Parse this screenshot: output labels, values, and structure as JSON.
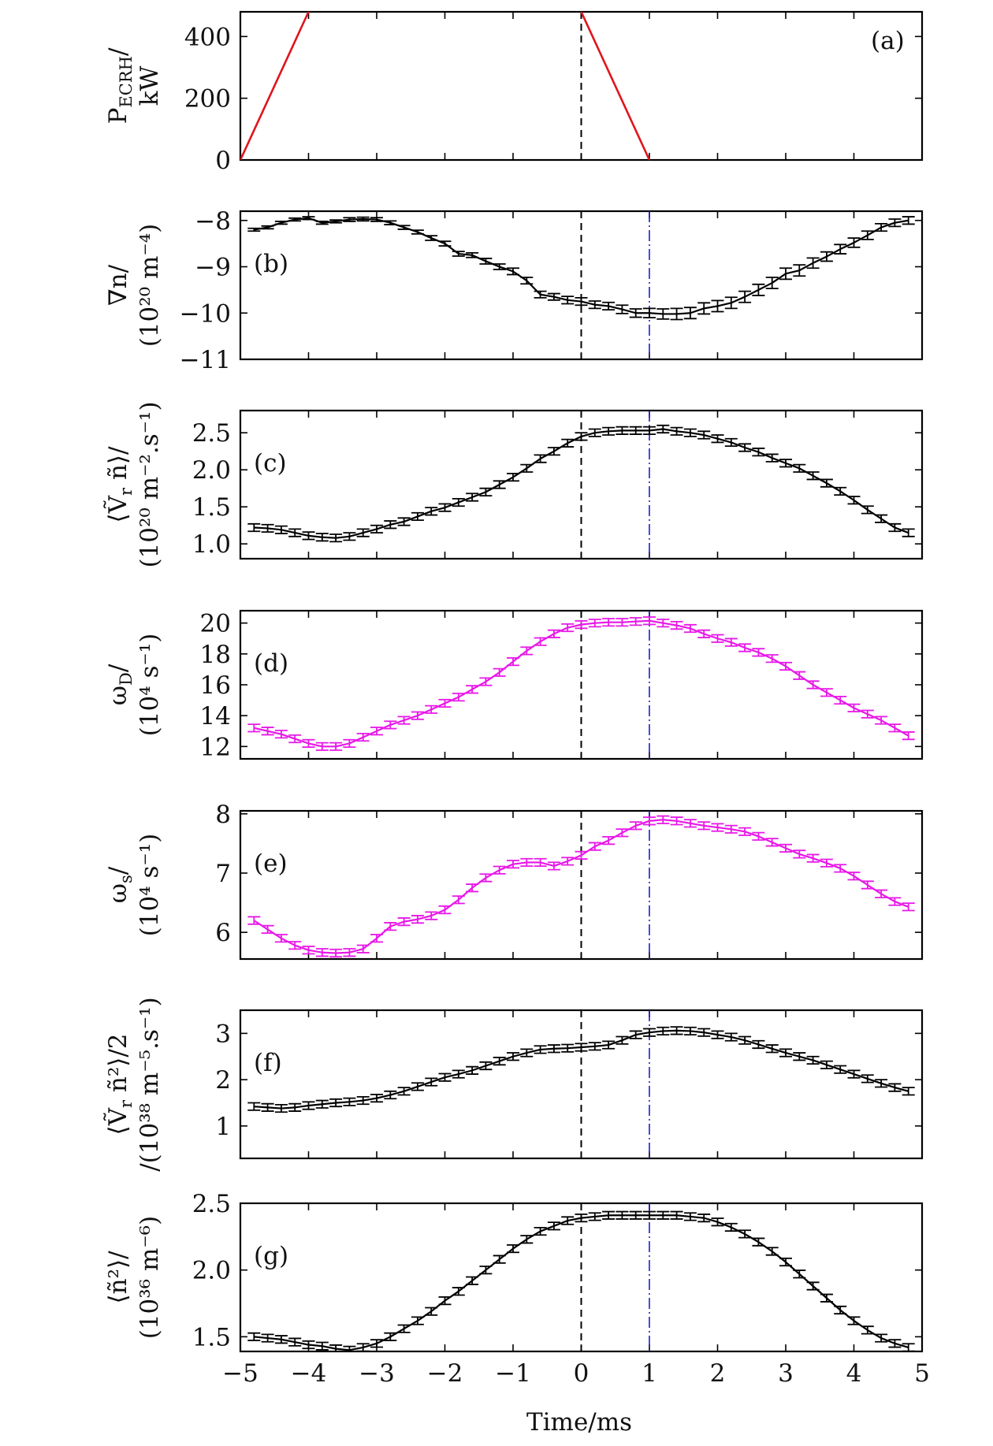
{
  "chart_data": {
    "type": "line",
    "x_range": [
      -5,
      5
    ],
    "xticks": [
      -5,
      -4,
      -3,
      -2,
      -1,
      0,
      1,
      2,
      3,
      4,
      5
    ],
    "xtick_labels": [
      "−5",
      "−4",
      "−3",
      "−2",
      "−1",
      "0",
      "1",
      "2",
      "3",
      "4",
      "5"
    ],
    "xlabel": "Time/ms",
    "vlines": [
      {
        "x": 0,
        "color": "#000000",
        "style": "dashed"
      },
      {
        "x": 1,
        "color": "#1f1fcf",
        "style": "dashdot"
      }
    ],
    "panels": [
      {
        "id": "a",
        "label": "(a)",
        "ylabel_lines": [
          "P_ECRH/",
          "kW"
        ],
        "ylim": [
          0,
          480
        ],
        "yticks": [
          0,
          200,
          400
        ],
        "ytick_labels": [
          "0",
          "200",
          "400"
        ],
        "color": "#e0141c",
        "errorbars": false,
        "series": [
          {
            "x": [
              -5,
              -4
            ],
            "y": [
              0,
              480
            ]
          },
          {
            "x": [
              0,
              1
            ],
            "y": [
              480,
              0
            ]
          }
        ]
      },
      {
        "id": "b",
        "label": "(b)",
        "ylabel_lines": [
          "∇n/",
          "(10²⁰ m⁻⁴)"
        ],
        "ylim": [
          -11,
          -7.8
        ],
        "yticks": [
          -11,
          -10,
          -9,
          -8
        ],
        "ytick_labels": [
          "−11",
          "−10",
          "−9",
          "−8"
        ],
        "color": "#000000",
        "errorbars": true,
        "x": [
          -4.8,
          -4.6,
          -4.4,
          -4.2,
          -4.0,
          -3.8,
          -3.6,
          -3.4,
          -3.2,
          -3.0,
          -2.8,
          -2.6,
          -2.4,
          -2.2,
          -2.0,
          -1.8,
          -1.6,
          -1.4,
          -1.2,
          -1.0,
          -0.8,
          -0.6,
          -0.4,
          -0.2,
          0.0,
          0.2,
          0.4,
          0.6,
          0.8,
          1.0,
          1.2,
          1.4,
          1.6,
          1.8,
          2.0,
          2.2,
          2.4,
          2.6,
          2.8,
          3.0,
          3.2,
          3.4,
          3.6,
          3.8,
          4.0,
          4.2,
          4.4,
          4.6,
          4.8
        ],
        "y": [
          -8.2,
          -8.15,
          -8.05,
          -7.98,
          -7.95,
          -8.05,
          -8.02,
          -7.98,
          -7.97,
          -7.98,
          -8.05,
          -8.15,
          -8.25,
          -8.38,
          -8.5,
          -8.72,
          -8.75,
          -8.88,
          -9.0,
          -9.1,
          -9.3,
          -9.6,
          -9.65,
          -9.72,
          -9.75,
          -9.82,
          -9.85,
          -9.92,
          -10.0,
          -10.0,
          -10.02,
          -10.02,
          -10.0,
          -9.9,
          -9.85,
          -9.78,
          -9.65,
          -9.5,
          -9.35,
          -9.15,
          -9.08,
          -8.92,
          -8.78,
          -8.62,
          -8.48,
          -8.32,
          -8.15,
          -8.05,
          -8.0
        ],
        "err": [
          0.03,
          0.03,
          0.03,
          0.03,
          0.03,
          0.03,
          0.03,
          0.04,
          0.04,
          0.04,
          0.04,
          0.04,
          0.04,
          0.05,
          0.05,
          0.05,
          0.05,
          0.06,
          0.06,
          0.07,
          0.07,
          0.07,
          0.07,
          0.08,
          0.08,
          0.08,
          0.08,
          0.09,
          0.09,
          0.1,
          0.11,
          0.12,
          0.12,
          0.12,
          0.12,
          0.12,
          0.12,
          0.12,
          0.12,
          0.12,
          0.12,
          0.11,
          0.1,
          0.1,
          0.1,
          0.09,
          0.08,
          0.08,
          0.08
        ]
      },
      {
        "id": "c",
        "label": "(c)",
        "ylabel_lines": [
          "⟨Ṽ_r ñ⟩/",
          "(10²⁰ m⁻².s⁻¹)"
        ],
        "ylim": [
          0.8,
          2.8
        ],
        "yticks": [
          1.0,
          1.5,
          2.0,
          2.5
        ],
        "ytick_labels": [
          "1.0",
          "1.5",
          "2.0",
          "2.5"
        ],
        "color": "#000000",
        "errorbars": true,
        "x": [
          -4.8,
          -4.6,
          -4.4,
          -4.2,
          -4.0,
          -3.8,
          -3.6,
          -3.4,
          -3.2,
          -3.0,
          -2.8,
          -2.6,
          -2.4,
          -2.2,
          -2.0,
          -1.8,
          -1.6,
          -1.4,
          -1.2,
          -1.0,
          -0.8,
          -0.6,
          -0.4,
          -0.2,
          0.0,
          0.2,
          0.4,
          0.6,
          0.8,
          1.0,
          1.2,
          1.4,
          1.6,
          1.8,
          2.0,
          2.2,
          2.4,
          2.6,
          2.8,
          3.0,
          3.2,
          3.4,
          3.6,
          3.8,
          4.0,
          4.2,
          4.4,
          4.6,
          4.8
        ],
        "y": [
          1.22,
          1.21,
          1.19,
          1.15,
          1.11,
          1.09,
          1.08,
          1.1,
          1.15,
          1.2,
          1.26,
          1.3,
          1.37,
          1.44,
          1.49,
          1.56,
          1.63,
          1.7,
          1.8,
          1.9,
          2.02,
          2.15,
          2.25,
          2.36,
          2.45,
          2.5,
          2.52,
          2.53,
          2.53,
          2.53,
          2.55,
          2.52,
          2.5,
          2.47,
          2.42,
          2.37,
          2.3,
          2.24,
          2.16,
          2.09,
          2.02,
          1.92,
          1.82,
          1.71,
          1.59,
          1.46,
          1.34,
          1.22,
          1.15
        ]
      },
      {
        "id": "d",
        "label": "(d)",
        "ylabel_lines": [
          "ω_D/",
          "(10⁴ s⁻¹)"
        ],
        "ylim": [
          11.2,
          20.8
        ],
        "yticks": [
          12,
          14,
          16,
          18,
          20
        ],
        "ytick_labels": [
          "12",
          "14",
          "16",
          "18",
          "20"
        ],
        "color": "#e818e8",
        "errorbars": true,
        "x": [
          -4.8,
          -4.6,
          -4.4,
          -4.2,
          -4.0,
          -3.8,
          -3.6,
          -3.4,
          -3.2,
          -3.0,
          -2.8,
          -2.6,
          -2.4,
          -2.2,
          -2.0,
          -1.8,
          -1.6,
          -1.4,
          -1.2,
          -1.0,
          -0.8,
          -0.6,
          -0.4,
          -0.2,
          0.0,
          0.2,
          0.4,
          0.6,
          0.8,
          1.0,
          1.2,
          1.4,
          1.6,
          1.8,
          2.0,
          2.2,
          2.4,
          2.6,
          2.8,
          3.0,
          3.2,
          3.4,
          3.6,
          3.8,
          4.0,
          4.2,
          4.4,
          4.6,
          4.8
        ],
        "y": [
          13.2,
          13.0,
          12.8,
          12.5,
          12.2,
          12.0,
          12.0,
          12.2,
          12.6,
          13.0,
          13.4,
          13.7,
          14.0,
          14.4,
          14.8,
          15.2,
          15.7,
          16.2,
          16.8,
          17.5,
          18.2,
          18.8,
          19.3,
          19.7,
          19.9,
          20.0,
          20.05,
          20.05,
          20.1,
          20.15,
          20.0,
          19.85,
          19.65,
          19.3,
          19.0,
          18.75,
          18.4,
          18.1,
          17.7,
          17.2,
          16.6,
          16.0,
          15.5,
          15.0,
          14.5,
          14.1,
          13.7,
          13.2,
          12.7
        ]
      },
      {
        "id": "e",
        "label": "(e)",
        "ylabel_lines": [
          "ω_s/",
          "(10⁴ s⁻¹)"
        ],
        "ylim": [
          5.55,
          8.05
        ],
        "yticks": [
          6,
          7,
          8
        ],
        "ytick_labels": [
          "6",
          "7",
          "8"
        ],
        "color": "#e818e8",
        "errorbars": true,
        "x": [
          -4.8,
          -4.6,
          -4.4,
          -4.2,
          -4.0,
          -3.8,
          -3.6,
          -3.4,
          -3.2,
          -3.0,
          -2.8,
          -2.6,
          -2.4,
          -2.2,
          -2.0,
          -1.8,
          -1.6,
          -1.4,
          -1.2,
          -1.0,
          -0.8,
          -0.6,
          -0.4,
          -0.2,
          0.0,
          0.2,
          0.4,
          0.6,
          0.8,
          1.0,
          1.2,
          1.4,
          1.6,
          1.8,
          2.0,
          2.2,
          2.4,
          2.6,
          2.8,
          3.0,
          3.2,
          3.4,
          3.6,
          3.8,
          4.0,
          4.2,
          4.4,
          4.6,
          4.8
        ],
        "y": [
          6.2,
          6.05,
          5.9,
          5.78,
          5.7,
          5.66,
          5.65,
          5.66,
          5.72,
          5.9,
          6.1,
          6.18,
          6.22,
          6.28,
          6.38,
          6.55,
          6.75,
          6.92,
          7.05,
          7.15,
          7.18,
          7.18,
          7.12,
          7.2,
          7.3,
          7.45,
          7.55,
          7.68,
          7.8,
          7.88,
          7.9,
          7.88,
          7.84,
          7.8,
          7.77,
          7.74,
          7.7,
          7.62,
          7.52,
          7.42,
          7.32,
          7.25,
          7.17,
          7.08,
          6.95,
          6.8,
          6.65,
          6.52,
          6.43
        ]
      },
      {
        "id": "f",
        "label": "(f)",
        "ylabel_lines": [
          "⟨Ṽ_r ñ²⟩/2",
          "/(10³⁸ m⁻⁵.s⁻¹)"
        ],
        "ylim": [
          0.3,
          3.5
        ],
        "yticks": [
          1,
          2,
          3
        ],
        "ytick_labels": [
          "1",
          "2",
          "3"
        ],
        "color": "#000000",
        "errorbars": true,
        "x": [
          -4.8,
          -4.6,
          -4.4,
          -4.2,
          -4.0,
          -3.8,
          -3.6,
          -3.4,
          -3.2,
          -3.0,
          -2.8,
          -2.6,
          -2.4,
          -2.2,
          -2.0,
          -1.8,
          -1.6,
          -1.4,
          -1.2,
          -1.0,
          -0.8,
          -0.6,
          -0.4,
          -0.2,
          0.0,
          0.2,
          0.4,
          0.6,
          0.8,
          1.0,
          1.2,
          1.4,
          1.6,
          1.8,
          2.0,
          2.2,
          2.4,
          2.6,
          2.8,
          3.0,
          3.2,
          3.4,
          3.6,
          3.8,
          4.0,
          4.2,
          4.4,
          4.6,
          4.8
        ],
        "y": [
          1.42,
          1.4,
          1.38,
          1.4,
          1.44,
          1.47,
          1.5,
          1.52,
          1.55,
          1.6,
          1.67,
          1.75,
          1.85,
          1.95,
          2.05,
          2.12,
          2.2,
          2.3,
          2.4,
          2.5,
          2.58,
          2.65,
          2.67,
          2.68,
          2.7,
          2.72,
          2.75,
          2.85,
          2.97,
          3.02,
          3.05,
          3.06,
          3.05,
          3.02,
          2.97,
          2.92,
          2.85,
          2.76,
          2.67,
          2.58,
          2.5,
          2.42,
          2.32,
          2.22,
          2.12,
          2.02,
          1.92,
          1.83,
          1.75
        ]
      },
      {
        "id": "g",
        "label": "(g)",
        "ylabel_lines": [
          "⟨ñ²⟩/",
          "(10³⁶ m⁻⁶)"
        ],
        "ylim": [
          1.39,
          2.5
        ],
        "yticks": [
          1.5,
          2.0,
          2.5
        ],
        "ytick_labels": [
          "1.5",
          "2.0",
          "2.5"
        ],
        "color": "#000000",
        "errorbars": true,
        "x": [
          -4.8,
          -4.6,
          -4.4,
          -4.2,
          -4.0,
          -3.8,
          -3.6,
          -3.4,
          -3.2,
          -3.0,
          -2.8,
          -2.6,
          -2.4,
          -2.2,
          -2.0,
          -1.8,
          -1.6,
          -1.4,
          -1.2,
          -1.0,
          -0.8,
          -0.6,
          -0.4,
          -0.2,
          0.0,
          0.2,
          0.4,
          0.6,
          0.8,
          1.0,
          1.2,
          1.4,
          1.6,
          1.8,
          2.0,
          2.2,
          2.4,
          2.6,
          2.8,
          3.0,
          3.2,
          3.4,
          3.6,
          3.8,
          4.0,
          4.2,
          4.4,
          4.6,
          4.8
        ],
        "y": [
          1.5,
          1.49,
          1.48,
          1.46,
          1.44,
          1.43,
          1.41,
          1.4,
          1.42,
          1.45,
          1.5,
          1.56,
          1.62,
          1.69,
          1.77,
          1.84,
          1.92,
          2.0,
          2.08,
          2.16,
          2.23,
          2.29,
          2.33,
          2.37,
          2.39,
          2.4,
          2.41,
          2.41,
          2.41,
          2.41,
          2.41,
          2.41,
          2.4,
          2.39,
          2.36,
          2.32,
          2.27,
          2.21,
          2.14,
          2.06,
          1.97,
          1.88,
          1.79,
          1.7,
          1.62,
          1.55,
          1.49,
          1.45,
          1.42
        ]
      }
    ]
  }
}
